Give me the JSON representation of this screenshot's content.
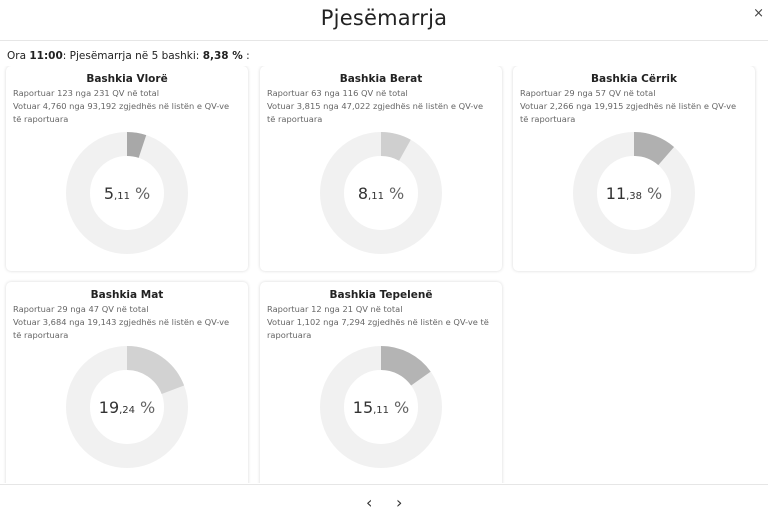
{
  "modal": {
    "title": "Pjesëmarrja",
    "close_label": "×"
  },
  "summary": {
    "prefix": "Ora ",
    "time": "11:00",
    "mid": ": Pjesëmarrja në 5 bashki: ",
    "percent": "8,38 %",
    "suffix": " :"
  },
  "cards": [
    {
      "title": "Bashkia Vlorë",
      "line1": "Raportuar 123 nga 231 QV në total",
      "line2": "Votuar 4,760 nga 93,192 zgjedhës në listën e QV-ve të raportuara",
      "int": "5",
      "dec": ",11",
      "sym": "%",
      "value": 5.11,
      "color": "#a8a8a8"
    },
    {
      "title": "Bashkia Berat",
      "line1": "Raportuar 63 nga 116 QV në total",
      "line2": "Votuar 3,815 nga 47,022 zgjedhës në listën e QV-ve të raportuara",
      "int": "8",
      "dec": ",11",
      "sym": "%",
      "value": 8.11,
      "color": "#cfcfcf"
    },
    {
      "title": "Bashkia Cërrik",
      "line1": "Raportuar 29 nga 57 QV në total",
      "line2": "Votuar 2,266 nga 19,915 zgjedhës në listën e QV-ve të raportuara",
      "int": "11",
      "dec": ",38",
      "sym": "%",
      "value": 11.38,
      "color": "#b0b0b0"
    },
    {
      "title": "Bashkia Mat",
      "line1": "Raportuar 29 nga 47 QV në total",
      "line2": "Votuar 3,684 nga 19,143 zgjedhës në listën e QV-ve të raportuara",
      "int": "19",
      "dec": ",24",
      "sym": "%",
      "value": 19.24,
      "color": "#d2d2d2"
    },
    {
      "title": "Bashkia Tepelenë",
      "line1": "Raportuar 12 nga 21 QV në total",
      "line2": "Votuar 1,102 nga 7,294 zgjedhës në listën e QV-ve të raportuara",
      "int": "15",
      "dec": ",11",
      "sym": "%",
      "value": 15.11,
      "color": "#b4b4b4"
    }
  ],
  "donut_track_color": "#f1f1f1",
  "nav": {
    "prev_label": "‹",
    "next_label": "›"
  }
}
